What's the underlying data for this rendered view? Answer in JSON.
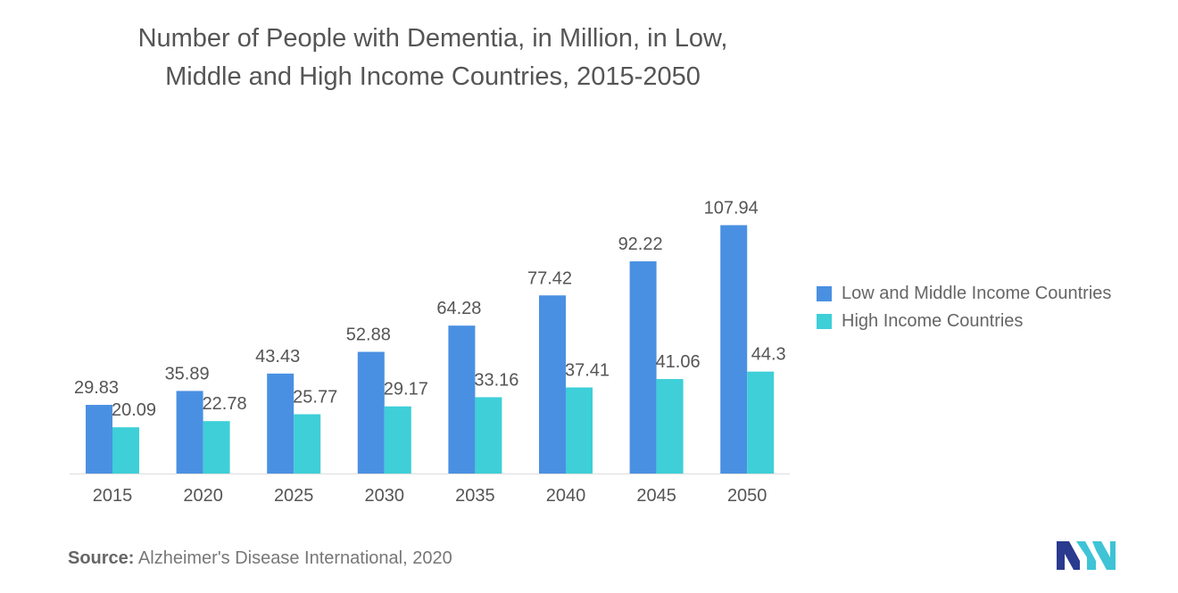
{
  "title_lines": [
    "Number of People with Dementia, in Million, in Low,",
    "Middle and High Income Countries, 2015-2050"
  ],
  "source_label": "Source:",
  "source_text": "Alzheimer's Disease International, 2020",
  "logo_icon": "mordor-intelligence-logo-icon",
  "colors": {
    "low_middle": "#4a90e2",
    "high": "#3ecfd8",
    "logo_left": "#2a3a8f",
    "logo_right": "#3ec4d6"
  },
  "chart_data": {
    "type": "bar",
    "title": "Number of People with Dementia, in Million, in Low, Middle and High Income Countries, 2015-2050",
    "categories": [
      "2015",
      "2020",
      "2025",
      "2030",
      "2035",
      "2040",
      "2045",
      "2050"
    ],
    "series": [
      {
        "name": "Low and Middle Income Countries",
        "values": [
          29.83,
          35.89,
          43.43,
          52.88,
          64.28,
          77.42,
          92.22,
          107.94
        ]
      },
      {
        "name": "High Income Countries",
        "values": [
          20.09,
          22.78,
          25.77,
          29.17,
          33.16,
          37.41,
          41.06,
          44.3
        ]
      }
    ],
    "xlabel": "",
    "ylabel": "",
    "ylim": [
      0,
      120
    ],
    "grid": false,
    "legend_position": "right"
  }
}
